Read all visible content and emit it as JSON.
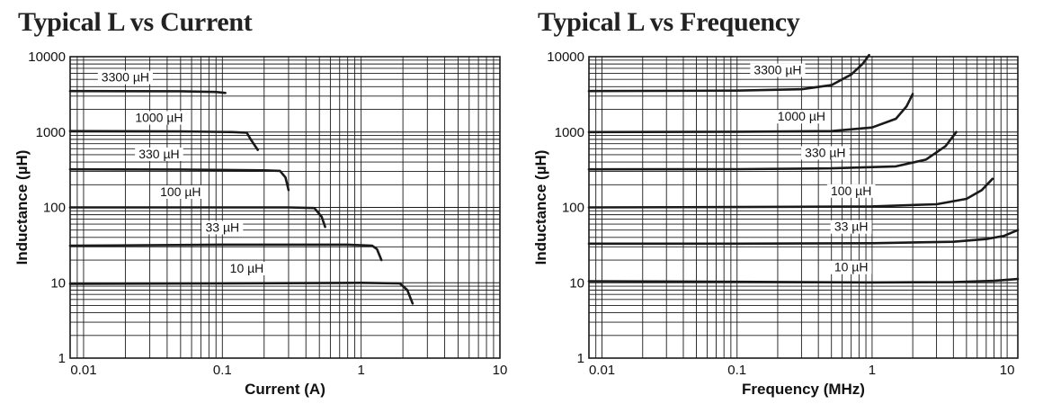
{
  "charts": [
    {
      "title": "Typical L vs Current"
    },
    {
      "title": "Typical L vs Frequency"
    }
  ],
  "colors": {
    "grid": "#1a1a1a",
    "curve": "#1a1a1a",
    "background": "#ffffff"
  },
  "chart_data": [
    {
      "type": "line",
      "title": "Typical L vs Current",
      "xlabel": "Current (A)",
      "ylabel": "Inductance (µH)",
      "xscale": "log",
      "yscale": "log",
      "xlim": [
        0.008,
        10
      ],
      "ylim": [
        1,
        10000
      ],
      "xticks": [
        {
          "v": 0.01,
          "label": "0.01"
        },
        {
          "v": 0.1,
          "label": "0.1"
        },
        {
          "v": 1,
          "label": "1"
        },
        {
          "v": 10,
          "label": "10"
        }
      ],
      "yticks": [
        {
          "v": 1,
          "label": "1"
        },
        {
          "v": 10,
          "label": "10"
        },
        {
          "v": 100,
          "label": "100"
        },
        {
          "v": 1000,
          "label": "1000"
        },
        {
          "v": 10000,
          "label": "10000"
        }
      ],
      "grid": true,
      "legend": "none",
      "series": [
        {
          "name": "3300 µH",
          "label_at": [
            0.02,
            4800
          ],
          "x": [
            0.008,
            0.05,
            0.09,
            0.105
          ],
          "y": [
            3500,
            3480,
            3400,
            3300
          ]
        },
        {
          "name": "1000 µH",
          "label_at": [
            0.035,
            1400
          ],
          "x": [
            0.008,
            0.05,
            0.12,
            0.15,
            0.16,
            0.18
          ],
          "y": [
            1030,
            1020,
            1000,
            980,
            800,
            580
          ]
        },
        {
          "name": "330 µH",
          "label_at": [
            0.035,
            460
          ],
          "x": [
            0.008,
            0.05,
            0.2,
            0.26,
            0.285,
            0.3
          ],
          "y": [
            320,
            318,
            310,
            305,
            250,
            170
          ]
        },
        {
          "name": "100 µH",
          "label_at": [
            0.05,
            145
          ],
          "x": [
            0.008,
            0.05,
            0.3,
            0.46,
            0.52,
            0.55
          ],
          "y": [
            100,
            100,
            100,
            98,
            75,
            55
          ]
        },
        {
          "name": "33 µH",
          "label_at": [
            0.1,
            49
          ],
          "x": [
            0.008,
            0.1,
            0.8,
            1.2,
            1.3,
            1.4
          ],
          "y": [
            31,
            32,
            32,
            31,
            28,
            20
          ]
        },
        {
          "name": "10 µH",
          "label_at": [
            0.15,
            14
          ],
          "x": [
            0.008,
            0.1,
            1,
            1.9,
            2.15,
            2.35
          ],
          "y": [
            9.7,
            9.8,
            10,
            9.8,
            8,
            5.3
          ]
        }
      ]
    },
    {
      "type": "line",
      "title": "Typical L vs Frequency",
      "xlabel": "Frequency (MHz)",
      "ylabel": "Inductance (µH)",
      "xscale": "log",
      "yscale": "log",
      "xlim": [
        0.008,
        12
      ],
      "ylim": [
        1,
        10000
      ],
      "xticks": [
        {
          "v": 0.01,
          "label": "0.01"
        },
        {
          "v": 0.1,
          "label": "0.1"
        },
        {
          "v": 1,
          "label": "1"
        },
        {
          "v": 10,
          "label": "10"
        }
      ],
      "yticks": [
        {
          "v": 1,
          "label": "1"
        },
        {
          "v": 10,
          "label": "10"
        },
        {
          "v": 100,
          "label": "100"
        },
        {
          "v": 1000,
          "label": "1000"
        },
        {
          "v": 10000,
          "label": "10000"
        }
      ],
      "grid": true,
      "legend": "none",
      "series": [
        {
          "name": "3300 µH",
          "label_at": [
            0.2,
            6000
          ],
          "x": [
            0.008,
            0.1,
            0.3,
            0.5,
            0.7,
            0.85,
            0.95
          ],
          "y": [
            3500,
            3550,
            3700,
            4200,
            5800,
            8000,
            10500
          ]
        },
        {
          "name": "1000 µH",
          "label_at": [
            0.3,
            1450
          ],
          "x": [
            0.008,
            0.1,
            0.5,
            1,
            1.5,
            1.8,
            2.0
          ],
          "y": [
            1000,
            1010,
            1030,
            1150,
            1500,
            2200,
            3200
          ]
        },
        {
          "name": "330 µH",
          "label_at": [
            0.45,
            480
          ],
          "x": [
            0.008,
            0.1,
            0.5,
            1.5,
            2.5,
            3.5,
            4.2
          ],
          "y": [
            320,
            322,
            330,
            350,
            430,
            650,
            1000
          ]
        },
        {
          "name": "100 µH",
          "label_at": [
            0.7,
            150
          ],
          "x": [
            0.008,
            0.1,
            1,
            3,
            5,
            6.5,
            7.8
          ],
          "y": [
            100,
            101,
            103,
            110,
            130,
            170,
            240
          ]
        },
        {
          "name": "33 µH",
          "label_at": [
            0.7,
            50
          ],
          "x": [
            0.008,
            0.1,
            1,
            4,
            7,
            9.5,
            12
          ],
          "y": [
            33,
            33,
            33.5,
            35,
            38,
            42,
            50
          ]
        },
        {
          "name": "10 µH",
          "label_at": [
            0.7,
            14.5
          ],
          "x": [
            0.008,
            0.1,
            1,
            4,
            8,
            12
          ],
          "y": [
            10.5,
            10.3,
            10.1,
            10.2,
            10.6,
            11.2
          ]
        }
      ]
    }
  ]
}
